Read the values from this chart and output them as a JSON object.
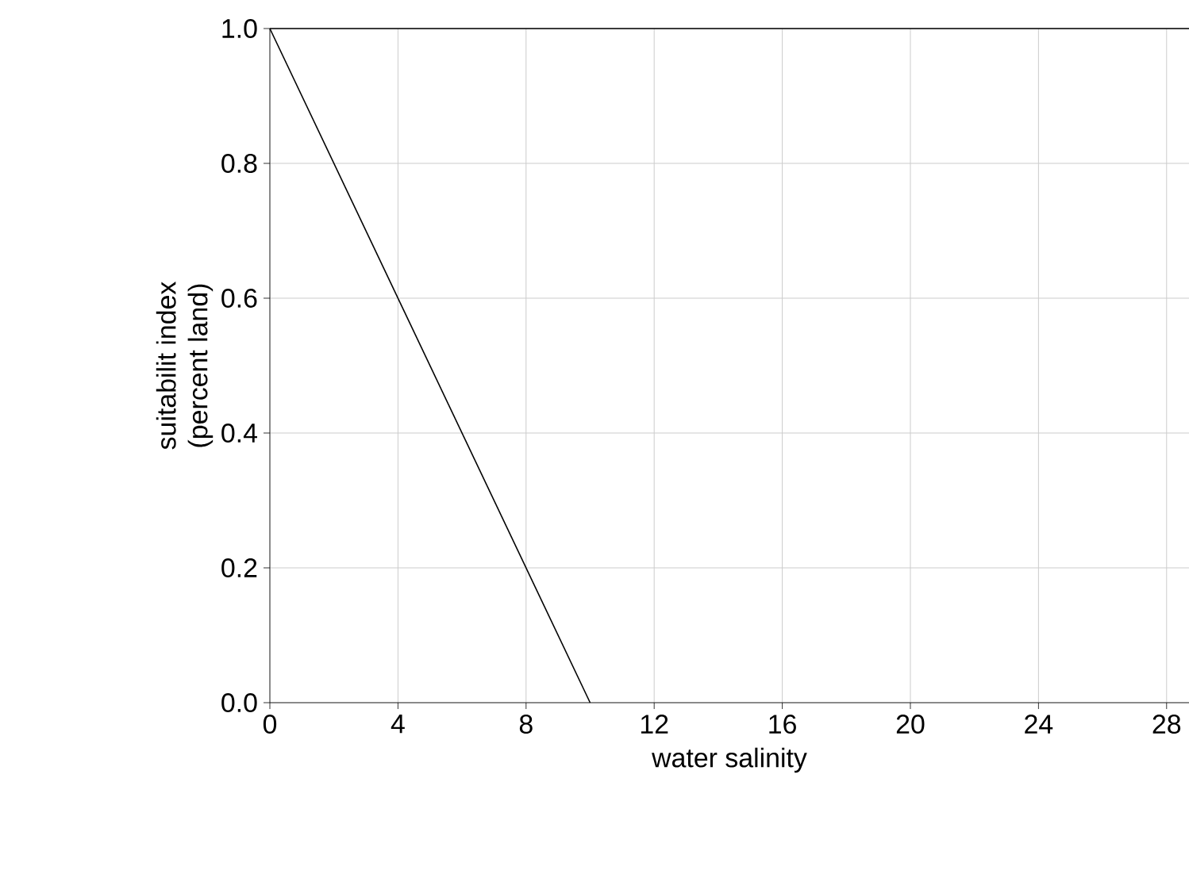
{
  "chart_data": {
    "type": "line",
    "xlabel": "water salinity",
    "ylabel": "suitabilit index\n(percent land)",
    "x": [
      0,
      10
    ],
    "values": [
      1.0,
      0.0
    ],
    "color": "#000000",
    "xlim": [
      0,
      28.7
    ],
    "xticks": [
      0,
      4,
      8,
      12,
      16,
      20,
      24,
      28
    ],
    "ylim": [
      0,
      1.0
    ],
    "yticks": [
      {
        "value": 0,
        "label": "0.0"
      },
      {
        "value": 0.2,
        "label": "0.2"
      },
      {
        "value": 0.4,
        "label": "0.4"
      },
      {
        "value": 0.6,
        "label": "0.6"
      },
      {
        "value": 0.8,
        "label": "0.8"
      },
      {
        "value": 1.0,
        "label": "1.0"
      }
    ],
    "grid": true,
    "marker": "none",
    "line_style": "solid"
  }
}
